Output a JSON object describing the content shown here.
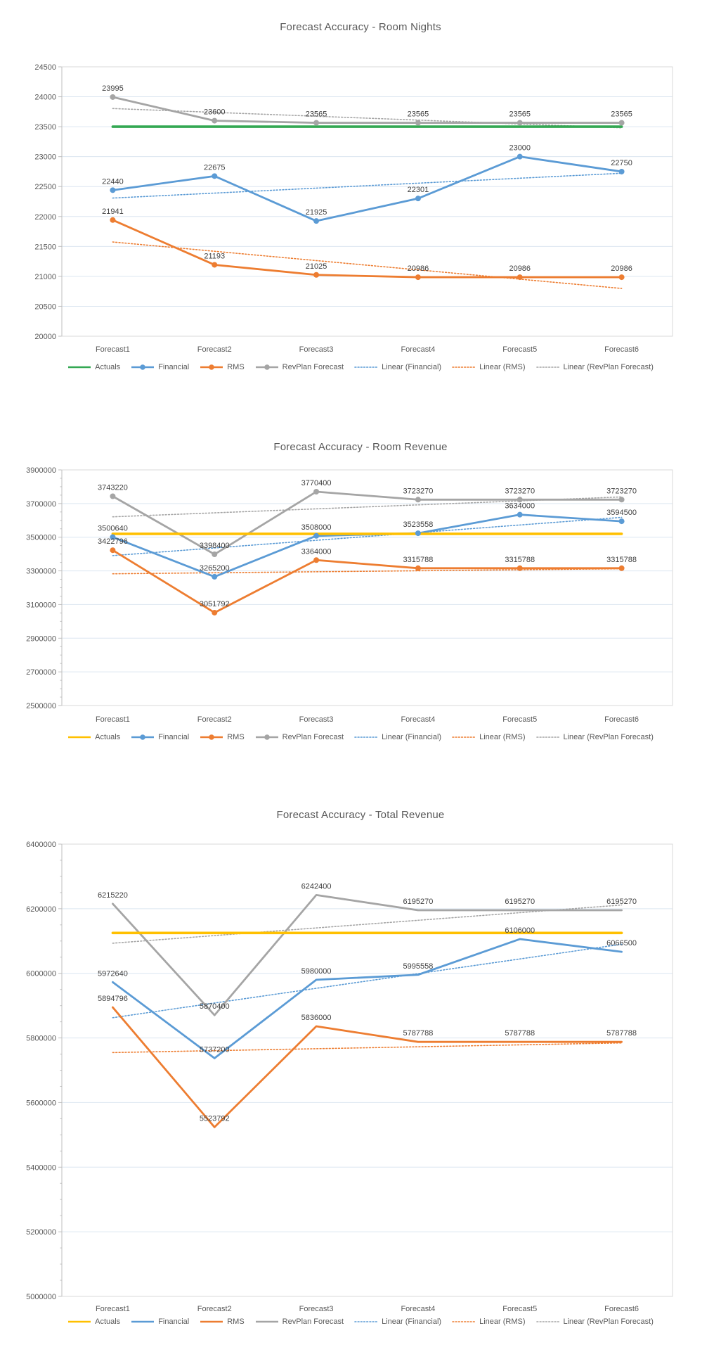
{
  "report": {
    "background_color": "#ffffff",
    "gridline_color": "#dce6f1",
    "plot_border_color": "#d9d9d9",
    "axis_line_color": "#bfbfbf",
    "axis_text_color": "#595959",
    "data_label_color": "#404040",
    "title_color": "#595959"
  },
  "chart_data": [
    {
      "type": "line",
      "title": "Forecast Accuracy - Room Nights",
      "categories": [
        "Forecast1",
        "Forecast2",
        "Forecast3",
        "Forecast4",
        "Forecast5",
        "Forecast6"
      ],
      "y_axis": {
        "min": 20000,
        "max": 24500,
        "step": 500
      },
      "legend_position": "bottom",
      "grid": true,
      "series": [
        {
          "name": "Actuals",
          "color": "#34a853",
          "values": [
            23500,
            23500,
            23500,
            23500,
            23500,
            23500
          ],
          "marker": false,
          "data_labels": false
        },
        {
          "name": "Financial",
          "color": "#5b9bd5",
          "values": [
            22440,
            22675,
            21925,
            22301,
            23000,
            22750
          ],
          "marker": true,
          "data_labels": true
        },
        {
          "name": "RMS",
          "color": "#ed7d31",
          "values": [
            21941,
            21193,
            21025,
            20986,
            20986,
            20986
          ],
          "marker": true,
          "data_labels": true
        },
        {
          "name": "RevPlan Forecast",
          "color": "#a5a5a5",
          "values": [
            23995,
            23600,
            23565,
            23565,
            23565,
            23565
          ],
          "marker": true,
          "data_labels": true
        }
      ],
      "trendlines": [
        {
          "name": "Linear (Financial)",
          "source": "Financial",
          "color": "#5b9bd5"
        },
        {
          "name": "Linear (RMS)",
          "source": "RMS",
          "color": "#ed7d31"
        },
        {
          "name": "Linear (RevPlan Forecast)",
          "source": "RevPlan Forecast",
          "color": "#a5a5a5"
        }
      ]
    },
    {
      "type": "line",
      "title": "Forecast Accuracy - Room Revenue",
      "categories": [
        "Forecast1",
        "Forecast2",
        "Forecast3",
        "Forecast4",
        "Forecast5",
        "Forecast6"
      ],
      "y_axis": {
        "min": 2500000,
        "max": 3900000,
        "step": 200000
      },
      "legend_position": "bottom",
      "grid": true,
      "series": [
        {
          "name": "Actuals",
          "color": "#ffc000",
          "values": [
            3520000,
            3520000,
            3520000,
            3520000,
            3520000,
            3520000
          ],
          "marker": false,
          "data_labels": false
        },
        {
          "name": "Financial",
          "color": "#5b9bd5",
          "values": [
            3500640,
            3265200,
            3508000,
            3523558,
            3634000,
            3594500
          ],
          "marker": true,
          "data_labels": true
        },
        {
          "name": "RMS",
          "color": "#ed7d31",
          "values": [
            3422796,
            3051792,
            3364000,
            3315788,
            3315788,
            3315788
          ],
          "marker": true,
          "data_labels": true
        },
        {
          "name": "RevPlan Forecast",
          "color": "#a5a5a5",
          "values": [
            3743220,
            3398400,
            3770400,
            3723270,
            3723270,
            3723270
          ],
          "marker": true,
          "data_labels": true
        }
      ],
      "trendlines": [
        {
          "name": "Linear (Financial)",
          "source": "Financial",
          "color": "#5b9bd5"
        },
        {
          "name": "Linear (RMS)",
          "source": "RMS",
          "color": "#ed7d31"
        },
        {
          "name": "Linear (RevPlan Forecast)",
          "source": "RevPlan Forecast",
          "color": "#a5a5a5"
        }
      ]
    },
    {
      "type": "line",
      "title": "Forecast Accuracy - Total Revenue",
      "categories": [
        "Forecast1",
        "Forecast2",
        "Forecast3",
        "Forecast4",
        "Forecast5",
        "Forecast6"
      ],
      "y_axis": {
        "min": 5000000,
        "max": 6400000,
        "step": 200000
      },
      "legend_position": "bottom",
      "grid": true,
      "series": [
        {
          "name": "Actuals",
          "color": "#ffc000",
          "values": [
            6125000,
            6125000,
            6125000,
            6125000,
            6125000,
            6125000
          ],
          "marker": false,
          "data_labels": false
        },
        {
          "name": "Financial",
          "color": "#5b9bd5",
          "values": [
            5972640,
            5737200,
            5980000,
            5995558,
            6106000,
            6066500
          ],
          "marker": false,
          "data_labels": true
        },
        {
          "name": "RMS",
          "color": "#ed7d31",
          "values": [
            5894796,
            5523792,
            5836000,
            5787788,
            5787788,
            5787788
          ],
          "marker": false,
          "data_labels": true
        },
        {
          "name": "RevPlan Forecast",
          "color": "#a5a5a5",
          "values": [
            6215220,
            5870400,
            6242400,
            6195270,
            6195270,
            6195270
          ],
          "marker": false,
          "data_labels": true
        }
      ],
      "trendlines": [
        {
          "name": "Linear (Financial)",
          "source": "Financial",
          "color": "#5b9bd5"
        },
        {
          "name": "Linear (RMS)",
          "source": "RMS",
          "color": "#ed7d31"
        },
        {
          "name": "Linear (RevPlan Forecast)",
          "source": "RevPlan Forecast",
          "color": "#a5a5a5"
        }
      ]
    }
  ]
}
